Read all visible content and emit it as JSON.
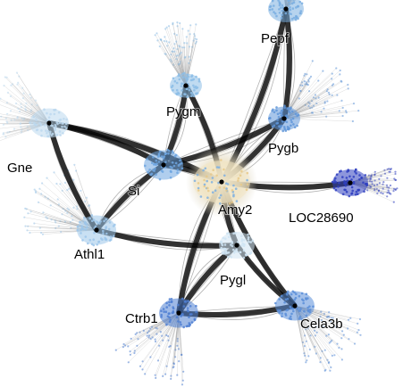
{
  "network": {
    "nodes": [
      {
        "id": "Amy2",
        "label": "Amy2",
        "color": "#f3e6c4",
        "hub": true
      },
      {
        "id": "Pepf",
        "label": "Pepf",
        "color": "#7aaee0"
      },
      {
        "id": "Pygm",
        "label": "Pygm",
        "color": "#8cbde6"
      },
      {
        "id": "Pygb",
        "label": "Pygb",
        "color": "#5f95d8"
      },
      {
        "id": "Gne",
        "label": "Gne",
        "color": "#bcd8ee"
      },
      {
        "id": "Si",
        "label": "Si",
        "color": "#6fa6e0"
      },
      {
        "id": "LOC28690",
        "label": "LOC28690",
        "color": "#2f3fbf"
      },
      {
        "id": "Athl1",
        "label": "Athl1",
        "color": "#9cc6ea"
      },
      {
        "id": "Pygl",
        "label": "Pygl",
        "color": "#cfe4f3"
      },
      {
        "id": "Ctrb1",
        "label": "Ctrb1",
        "color": "#4f7fd2"
      },
      {
        "id": "Cela3b",
        "label": "Cela3b",
        "color": "#5a8ed8"
      }
    ],
    "edges": [
      [
        "Amy2",
        "Pepf"
      ],
      [
        "Amy2",
        "Pygm"
      ],
      [
        "Amy2",
        "Pygb"
      ],
      [
        "Amy2",
        "Si"
      ],
      [
        "Amy2",
        "LOC28690"
      ],
      [
        "Amy2",
        "Pygl"
      ],
      [
        "Amy2",
        "Ctrb1"
      ],
      [
        "Amy2",
        "Cela3b"
      ],
      [
        "Amy2",
        "Gne"
      ],
      [
        "Si",
        "Gne"
      ],
      [
        "Si",
        "Athl1"
      ],
      [
        "Si",
        "Pygm"
      ],
      [
        "Si",
        "Pygb"
      ],
      [
        "Gne",
        "Athl1"
      ],
      [
        "Athl1",
        "Pygl"
      ],
      [
        "Pygl",
        "Cela3b"
      ],
      [
        "Pygl",
        "Ctrb1"
      ],
      [
        "Ctrb1",
        "Cela3b"
      ],
      [
        "Pygb",
        "Pepf"
      ]
    ]
  }
}
